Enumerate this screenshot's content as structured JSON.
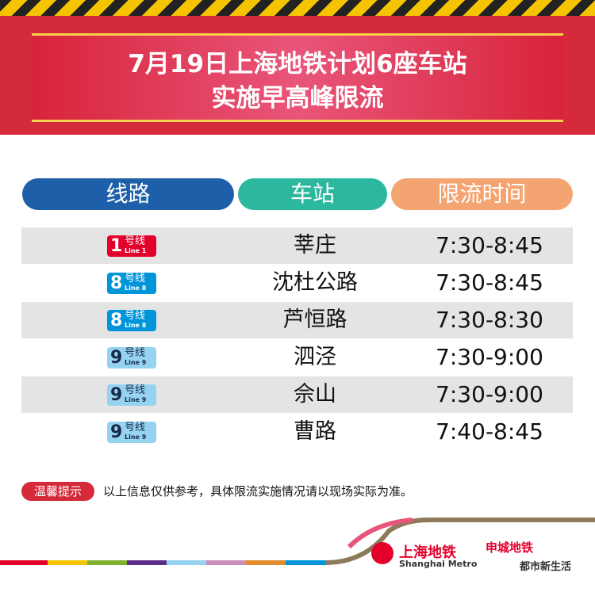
{
  "header": {
    "title_line1": "7月19日上海地铁计划6座车站",
    "title_line2": "实施早高峰限流"
  },
  "table": {
    "headers": [
      "线路",
      "车站",
      "限流时间"
    ],
    "rows": [
      {
        "line_number": "1",
        "line_cn": "号线",
        "line_en": "Line 1",
        "color": "#e3002b",
        "text_color": "#ffffff",
        "station": "莘庄",
        "time": "7:30-8:45"
      },
      {
        "line_number": "8",
        "line_cn": "号线",
        "line_en": "Line 8",
        "color": "#0094d8",
        "text_color": "#ffffff",
        "station": "沈杜公路",
        "time": "7:30-8:45"
      },
      {
        "line_number": "8",
        "line_cn": "号线",
        "line_en": "Line 8",
        "color": "#0094d8",
        "text_color": "#ffffff",
        "station": "芦恒路",
        "time": "7:30-8:30"
      },
      {
        "line_number": "9",
        "line_cn": "号线",
        "line_en": "Line 9",
        "color": "#95d3f1",
        "text_color": "#1a2a4a",
        "station": "泗泾",
        "time": "7:30-9:00"
      },
      {
        "line_number": "9",
        "line_cn": "号线",
        "line_en": "Line 9",
        "color": "#95d3f1",
        "text_color": "#1a2a4a",
        "station": "佘山",
        "time": "7:30-9:00"
      },
      {
        "line_number": "9",
        "line_cn": "号线",
        "line_en": "Line 9",
        "color": "#95d3f1",
        "text_color": "#1a2a4a",
        "station": "曹路",
        "time": "7:40-8:45"
      }
    ]
  },
  "notice": {
    "label": "温馨提示",
    "text": "以上信息仅供参考，具体限流实施情况请以现场实际为准。"
  },
  "footer": {
    "logo_cn": "上海地铁",
    "logo_en": "Shanghai Metro",
    "brand": "申城地铁",
    "slogan": "都市新生活"
  }
}
